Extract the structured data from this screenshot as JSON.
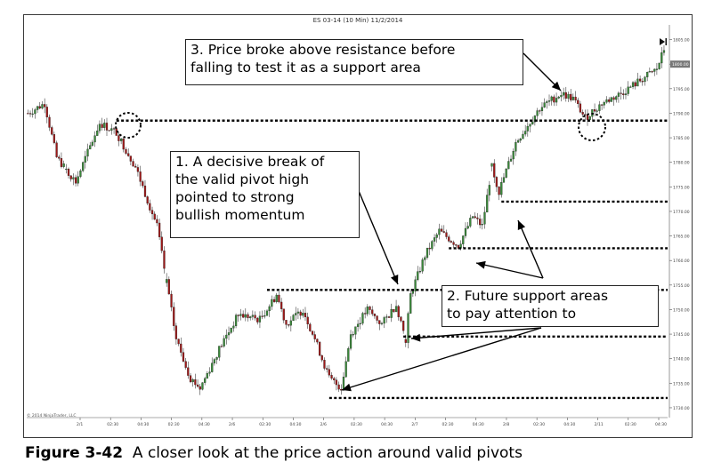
{
  "chart_data": {
    "type": "candlestick",
    "title": "ES 03-14 (10 Min)  11/2/2014",
    "copyright": "© 2014 NinjaTrader, LLC",
    "ylim": [
      1728,
      1808
    ],
    "y_ticks": [
      1805,
      1800,
      1795,
      1790,
      1785,
      1780,
      1775,
      1770,
      1765,
      1760,
      1755,
      1750,
      1745,
      1740,
      1735,
      1730
    ],
    "y_tick_labels": [
      "1805.00",
      "1800.00",
      "1795.00",
      "1790.00",
      "1785.00",
      "1780.00",
      "1775.00",
      "1770.00",
      "1765.00",
      "1760.00",
      "1755.00",
      "1750.00",
      "1745.00",
      "1740.00",
      "1735.00",
      "1730.00"
    ],
    "last_price_label": "1800.00",
    "last_price": 1800,
    "x_tick_labels": [
      "2/1",
      "02:30",
      "04:30",
      "02:30",
      "04:30",
      "2/6",
      "02:30",
      "04:30",
      "2/6",
      "02:30",
      "04:30",
      "2/7",
      "02:30",
      "04:30",
      "2/8",
      "02:30",
      "04:30",
      "2/11",
      "02:30",
      "04:30"
    ],
    "path": [
      [
        0,
        1790
      ],
      [
        7,
        1792
      ],
      [
        12,
        1781
      ],
      [
        20,
        1776
      ],
      [
        30,
        1788
      ],
      [
        37,
        1786
      ],
      [
        45,
        1779
      ],
      [
        54,
        1767
      ],
      [
        62,
        1744
      ],
      [
        68,
        1736
      ],
      [
        72,
        1734
      ],
      [
        80,
        1742
      ],
      [
        88,
        1749
      ],
      [
        97,
        1748
      ],
      [
        104,
        1753
      ],
      [
        108,
        1747
      ],
      [
        115,
        1750
      ],
      [
        120,
        1744
      ],
      [
        126,
        1736
      ],
      [
        131,
        1734
      ],
      [
        135,
        1745
      ],
      [
        142,
        1750
      ],
      [
        148,
        1747
      ],
      [
        154,
        1751
      ],
      [
        158,
        1744
      ],
      [
        160,
        1753
      ],
      [
        166,
        1761
      ],
      [
        172,
        1766
      ],
      [
        180,
        1763
      ],
      [
        186,
        1769
      ],
      [
        190,
        1767
      ],
      [
        194,
        1779
      ],
      [
        197,
        1774
      ],
      [
        204,
        1784
      ],
      [
        214,
        1791
      ],
      [
        223,
        1794
      ],
      [
        228,
        1793
      ],
      [
        233,
        1789
      ],
      [
        240,
        1792
      ],
      [
        248,
        1794
      ],
      [
        257,
        1797
      ],
      [
        263,
        1799
      ],
      [
        266,
        1803
      ]
    ],
    "gaps_after": [
      15,
      57,
      157,
      193
    ],
    "support_levels": [
      {
        "price": 1788.5,
        "x_start": 37
      },
      {
        "price": 1772,
        "x_start": 198
      },
      {
        "price": 1762.5,
        "x_start": 176
      },
      {
        "price": 1754,
        "x_start": 100
      },
      {
        "price": 1744.5,
        "x_start": 157
      },
      {
        "price": 1732,
        "x_start": 126
      }
    ]
  },
  "annotations": {
    "callout_1": [
      "1. A decisive break of",
      "the valid pivot high",
      "pointed to strong",
      "bullish momentum"
    ],
    "callout_2": [
      "2. Future support areas",
      "to pay attention to"
    ],
    "callout_3": [
      "3. Price broke above resistance before",
      "falling to test it as a support area"
    ]
  },
  "caption": {
    "number": "Figure 3-42",
    "text": "A closer look at the price action around valid pivots"
  },
  "colors": {
    "up_candle": "#3a8a3a",
    "down_candle": "#a01818",
    "wick": "#1a1a1a",
    "support_line": "#000000"
  }
}
